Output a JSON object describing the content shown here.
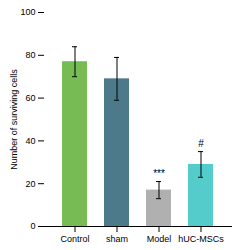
{
  "chart_data": {
    "type": "bar",
    "categories": [
      "Control",
      "sham",
      "Model",
      "hUC-MSCs"
    ],
    "values": [
      77,
      69,
      17,
      29
    ],
    "errors": [
      7,
      10,
      4,
      6
    ],
    "colors": [
      "#77bb55",
      "#4d7a8a",
      "#b0b0b0",
      "#55cccc"
    ],
    "ylabel": "Number of surviving cells",
    "ylim": [
      0,
      100
    ],
    "yticks": [
      0,
      20,
      40,
      60,
      80,
      100
    ],
    "grid": false,
    "annotations": [
      {
        "text": "***",
        "category": "Model",
        "y": 23
      },
      {
        "text": "#",
        "category": "hUC-MSCs",
        "y": 37
      }
    ]
  }
}
